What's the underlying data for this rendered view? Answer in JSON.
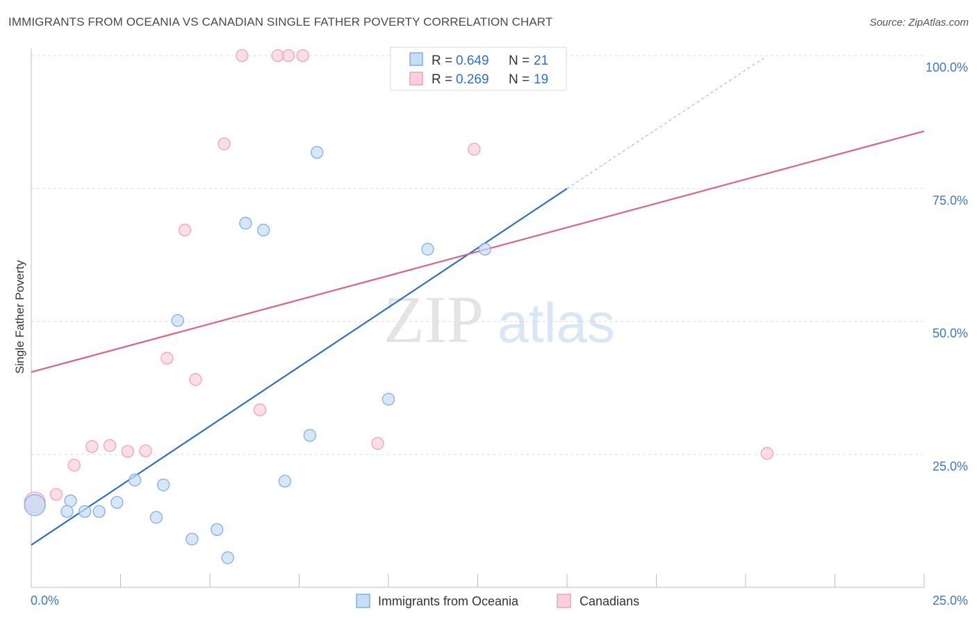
{
  "title": "IMMIGRANTS FROM OCEANIA VS CANADIAN SINGLE FATHER POVERTY CORRELATION CHART",
  "source": "Source: ZipAtlas.com",
  "watermark": {
    "zip": "ZIP",
    "atlas": "atlas"
  },
  "legend_top": [
    {
      "r_label": "R = ",
      "r_value": "0.649",
      "n_label": "N = ",
      "n_value": "21"
    },
    {
      "r_label": "R = ",
      "r_value": "0.269",
      "n_label": "N = ",
      "n_value": "19"
    }
  ],
  "chart_data": {
    "type": "scatter",
    "title": "IMMIGRANTS FROM OCEANIA VS CANADIAN SINGLE FATHER POVERTY CORRELATION CHART",
    "xlabel": "",
    "ylabel": "Single Father Poverty",
    "xlim": [
      0,
      25
    ],
    "ylim": [
      0,
      102
    ],
    "x_tick_labels": [
      "0.0%",
      "25.0%"
    ],
    "y_ticks": [
      25,
      50,
      75,
      100
    ],
    "y_tick_labels": [
      "25.0%",
      "50.0%",
      "75.0%",
      "100.0%"
    ],
    "grid": true,
    "legend_position": "bottom",
    "series": [
      {
        "name": "Immigrants from Oceania",
        "color": "#7fb0ec",
        "fill": "#c7dcf6",
        "line_color": "#2a6fd0",
        "R": 0.649,
        "N": 21,
        "trend": {
          "x0": 0,
          "y0": 8.0,
          "x1": 15.0,
          "y1": 75.0,
          "dash_to_x": 20.5,
          "dash_to_y": 99.5
        },
        "points": [
          [
            0.1,
            15.5
          ],
          [
            1.1,
            16.3
          ],
          [
            1.0,
            14.3
          ],
          [
            1.5,
            14.3
          ],
          [
            1.9,
            14.3
          ],
          [
            2.4,
            16.0
          ],
          [
            2.9,
            20.2
          ],
          [
            3.5,
            13.2
          ],
          [
            3.7,
            19.3
          ],
          [
            4.1,
            50.2
          ],
          [
            4.5,
            9.1
          ],
          [
            5.2,
            10.9
          ],
          [
            5.5,
            5.6
          ],
          [
            6.0,
            68.5
          ],
          [
            6.5,
            67.2
          ],
          [
            7.1,
            20.0
          ],
          [
            7.8,
            28.6
          ],
          [
            8.0,
            81.8
          ],
          [
            10.0,
            35.4
          ],
          [
            11.1,
            63.6
          ],
          [
            12.7,
            63.6
          ]
        ]
      },
      {
        "name": "Canadians",
        "color": "#f0a3b8",
        "fill": "#f9d0dc",
        "line_color": "#e0608a",
        "R": 0.269,
        "N": 19,
        "trend": {
          "x0": 0,
          "y0": 40.5,
          "x1": 25.0,
          "y1": 85.8
        },
        "points": [
          [
            0.1,
            16.0
          ],
          [
            0.7,
            17.5
          ],
          [
            1.2,
            23.0
          ],
          [
            1.7,
            26.5
          ],
          [
            2.2,
            26.7
          ],
          [
            2.7,
            25.6
          ],
          [
            3.2,
            25.7
          ],
          [
            3.8,
            43.1
          ],
          [
            4.3,
            67.2
          ],
          [
            4.6,
            39.1
          ],
          [
            5.4,
            83.4
          ],
          [
            5.9,
            100.0
          ],
          [
            6.4,
            33.4
          ],
          [
            6.9,
            100.0
          ],
          [
            7.2,
            100.0
          ],
          [
            7.6,
            100.0
          ],
          [
            9.7,
            27.1
          ],
          [
            12.4,
            82.4
          ],
          [
            20.6,
            25.2
          ]
        ]
      }
    ]
  }
}
